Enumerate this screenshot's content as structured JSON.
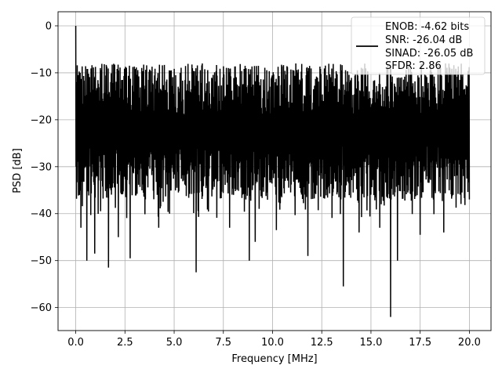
{
  "chart_data": {
    "type": "line",
    "title": "",
    "xlabel": "Frequency [MHz]",
    "ylabel": "PSD [dB]",
    "xlim": [
      -0.9,
      21.1
    ],
    "ylim": [
      -64.9,
      3.0
    ],
    "xticks": [
      0.0,
      2.5,
      5.0,
      7.5,
      10.0,
      12.5,
      15.0,
      17.5,
      20.0
    ],
    "xtick_labels": [
      "0.0",
      "2.5",
      "5.0",
      "7.5",
      "10.0",
      "12.5",
      "15.0",
      "17.5",
      "20.0"
    ],
    "yticks": [
      0,
      -10,
      -20,
      -30,
      -40,
      -50,
      -60
    ],
    "ytick_labels": [
      "0",
      "−10",
      "−20",
      "−30",
      "−40",
      "−50",
      "−60"
    ],
    "grid": true,
    "legend_position": "top-right",
    "legend_lines": [
      "ENOB: -4.62 bits",
      "SNR: -26.04 dB",
      "SINAD: -26.05 dB",
      "SFDR: 2.86"
    ],
    "series": [
      {
        "color": "#000000",
        "x_range": [
          0.0,
          20.0
        ],
        "num_points": 1600,
        "noise_band": {
          "upper_db": -10,
          "lower_db": -35
        },
        "peak": {
          "x": 0.0,
          "y": 0.0
        },
        "notable_dips": [
          {
            "x": 0.25,
            "y": -43
          },
          {
            "x": 0.55,
            "y": -50
          },
          {
            "x": 0.95,
            "y": -48.5
          },
          {
            "x": 1.65,
            "y": -51.5
          },
          {
            "x": 2.15,
            "y": -45
          },
          {
            "x": 2.75,
            "y": -49.5
          },
          {
            "x": 4.2,
            "y": -43
          },
          {
            "x": 4.75,
            "y": -40
          },
          {
            "x": 6.1,
            "y": -52.5
          },
          {
            "x": 7.8,
            "y": -43
          },
          {
            "x": 8.8,
            "y": -50
          },
          {
            "x": 9.1,
            "y": -46
          },
          {
            "x": 10.2,
            "y": -43.5
          },
          {
            "x": 11.8,
            "y": -49
          },
          {
            "x": 13.6,
            "y": -55.5
          },
          {
            "x": 14.4,
            "y": -44
          },
          {
            "x": 15.45,
            "y": -43
          },
          {
            "x": 16.0,
            "y": -62
          },
          {
            "x": 16.35,
            "y": -50
          },
          {
            "x": 17.5,
            "y": -44.5
          },
          {
            "x": 18.7,
            "y": -44
          }
        ]
      }
    ]
  }
}
